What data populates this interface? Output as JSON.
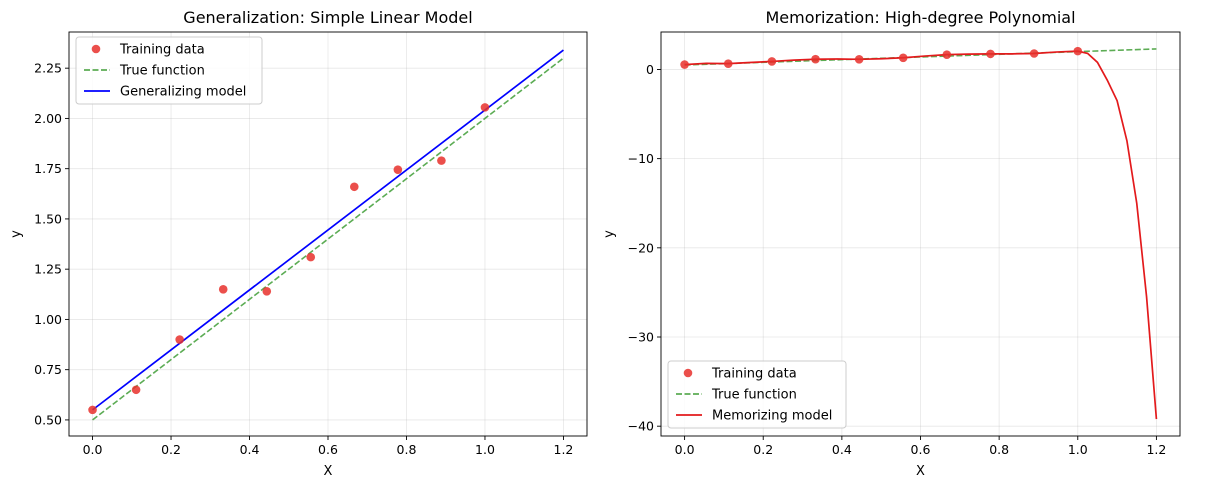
{
  "chart_data": [
    {
      "type": "scatter",
      "title": "Generalization: Simple Linear Model",
      "xlabel": "X",
      "ylabel": "y",
      "xlim": [
        -0.06,
        1.26
      ],
      "ylim": [
        0.42,
        2.43
      ],
      "xticks": [
        0.0,
        0.2,
        0.4,
        0.6,
        0.8,
        1.0,
        1.2
      ],
      "xtick_labels": [
        "0.0",
        "0.2",
        "0.4",
        "0.6",
        "0.8",
        "1.0",
        "1.2"
      ],
      "yticks": [
        0.5,
        0.75,
        1.0,
        1.25,
        1.5,
        1.75,
        2.0,
        2.25
      ],
      "ytick_labels": [
        "0.50",
        "0.75",
        "1.00",
        "1.25",
        "1.50",
        "1.75",
        "2.00",
        "2.25"
      ],
      "grid": true,
      "legend_position": "top-left",
      "series": [
        {
          "name": "Training data",
          "kind": "scatter",
          "color": "#e8302c",
          "x": [
            0.0,
            0.111,
            0.222,
            0.333,
            0.444,
            0.556,
            0.667,
            0.778,
            0.889,
            1.0
          ],
          "y": [
            0.55,
            0.65,
            0.9,
            1.15,
            1.14,
            1.31,
            1.66,
            1.745,
            1.79,
            2.055
          ]
        },
        {
          "name": "True function",
          "kind": "dashed-line",
          "color": "#4aa341",
          "x": [
            0.0,
            1.2
          ],
          "y": [
            0.5,
            2.3
          ]
        },
        {
          "name": "Generalizing model",
          "kind": "line",
          "color": "#0000ff",
          "x": [
            0.0,
            1.2
          ],
          "y": [
            0.55,
            2.34
          ]
        }
      ]
    },
    {
      "type": "scatter",
      "title": "Memorization: High-degree Polynomial",
      "xlabel": "X",
      "ylabel": "y",
      "xlim": [
        -0.06,
        1.26
      ],
      "ylim": [
        -41.1,
        4.2
      ],
      "xticks": [
        0.0,
        0.2,
        0.4,
        0.6,
        0.8,
        1.0,
        1.2
      ],
      "xtick_labels": [
        "0.0",
        "0.2",
        "0.4",
        "0.6",
        "0.8",
        "1.0",
        "1.2"
      ],
      "yticks": [
        0,
        -10,
        -20,
        -30,
        -40
      ],
      "ytick_labels": [
        "0",
        "−10",
        "−20",
        "−30",
        "−40"
      ],
      "grid": true,
      "legend_position": "lower-left",
      "series": [
        {
          "name": "Training data",
          "kind": "scatter",
          "color": "#e8302c",
          "x": [
            0.0,
            0.111,
            0.222,
            0.333,
            0.444,
            0.556,
            0.667,
            0.778,
            0.889,
            1.0
          ],
          "y": [
            0.55,
            0.65,
            0.9,
            1.15,
            1.14,
            1.31,
            1.66,
            1.745,
            1.79,
            2.055
          ]
        },
        {
          "name": "True function",
          "kind": "dashed-line",
          "color": "#4aa341",
          "x": [
            0.0,
            1.2
          ],
          "y": [
            0.5,
            2.3
          ]
        },
        {
          "name": "Memorizing model",
          "kind": "line",
          "color": "#e31a1c",
          "x": [
            0.0,
            0.055,
            0.111,
            0.166,
            0.222,
            0.278,
            0.333,
            0.389,
            0.444,
            0.5,
            0.556,
            0.611,
            0.667,
            0.722,
            0.778,
            0.833,
            0.889,
            0.944,
            1.0,
            1.025,
            1.05,
            1.075,
            1.1,
            1.125,
            1.15,
            1.175,
            1.2
          ],
          "y": [
            0.55,
            0.68,
            0.65,
            0.78,
            0.9,
            1.05,
            1.15,
            1.17,
            1.14,
            1.2,
            1.31,
            1.5,
            1.66,
            1.72,
            1.745,
            1.75,
            1.79,
            1.95,
            2.055,
            1.8,
            0.8,
            -1.2,
            -3.5,
            -8.0,
            -15.0,
            -25.5,
            -39.2
          ]
        }
      ]
    }
  ]
}
